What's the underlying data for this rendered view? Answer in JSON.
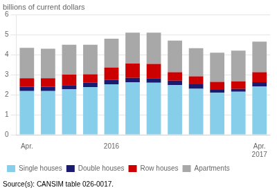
{
  "chart_data": {
    "type": "bar",
    "title": "billions of current dollars",
    "annotations": [
      "Source(s): CANSIM table 026-0017."
    ],
    "categories": [
      "Apr.",
      null,
      null,
      null,
      "2016",
      null,
      null,
      null,
      null,
      null,
      null,
      "Apr.\n2017"
    ],
    "series": [
      {
        "name": "Single houses",
        "color": "#87CEEB",
        "values": [
          2.18,
          2.18,
          2.28,
          2.38,
          2.52,
          2.62,
          2.6,
          2.48,
          2.3,
          2.1,
          2.15,
          2.42
        ]
      },
      {
        "name": "Double houses",
        "color": "#1a1a6e",
        "values": [
          0.22,
          0.22,
          0.2,
          0.22,
          0.22,
          0.22,
          0.22,
          0.22,
          0.22,
          0.14,
          0.14,
          0.2
        ]
      },
      {
        "name": "Row houses",
        "color": "#cc0000",
        "values": [
          0.42,
          0.42,
          0.52,
          0.42,
          0.62,
          0.72,
          0.72,
          0.42,
          0.4,
          0.4,
          0.38,
          0.5
        ]
      },
      {
        "name": "Apartments",
        "color": "#a8a8a8",
        "values": [
          1.52,
          1.48,
          1.5,
          1.48,
          1.44,
          1.54,
          1.56,
          1.58,
          1.4,
          1.46,
          1.53,
          1.53
        ]
      }
    ],
    "stacked": true,
    "ylim": [
      0,
      6
    ],
    "yticks": [
      0,
      1,
      2,
      3,
      4,
      5,
      6
    ],
    "grid": true,
    "legend": "bottom"
  }
}
